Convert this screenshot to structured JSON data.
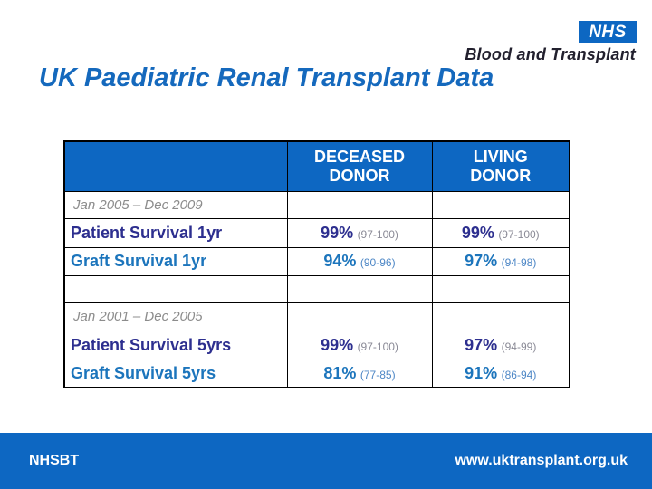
{
  "logo": {
    "nhs": "NHS",
    "org": "Blood and Transplant"
  },
  "title": "UK Paediatric Renal Transplant Data",
  "table": {
    "col_headers": [
      {
        "line1": "DECEASED",
        "line2": "DONOR"
      },
      {
        "line1": "LIVING",
        "line2": "DONOR"
      }
    ],
    "rows": [
      {
        "label": "Jan 2005 – Dec 2009"
      },
      {
        "label": "Patient Survival 1yr",
        "deceased": {
          "pct": "99%",
          "ci": "(97-100)"
        },
        "living": {
          "pct": "99%",
          "ci": "(97-100)"
        }
      },
      {
        "label": "Graft Survival 1yr",
        "deceased": {
          "pct": "94%",
          "ci": "(90-96)"
        },
        "living": {
          "pct": "97%",
          "ci": "(94-98)"
        }
      },
      {
        "label": ""
      },
      {
        "label": "Jan 2001 – Dec 2005"
      },
      {
        "label": "Patient Survival 5yrs",
        "deceased": {
          "pct": "99%",
          "ci": "(97-100)"
        },
        "living": {
          "pct": "97%",
          "ci": "(94-99)"
        }
      },
      {
        "label": "Graft Survival 5yrs",
        "deceased": {
          "pct": "81%",
          "ci": "(77-85)"
        },
        "living": {
          "pct": "91%",
          "ci": "(86-94)"
        }
      }
    ]
  },
  "footer": {
    "left": "NHSBT",
    "right": "www.uktransplant.org.uk"
  },
  "colors": {
    "nhs_blue": "#0d67c2",
    "title_blue": "#1569bd",
    "navy_text": "#2d2f8f",
    "bright_blue_text": "#1c75bc",
    "period_gray": "#8c8c8c",
    "ci_gray": "#8a8a96",
    "ci_blue": "#4d87c6",
    "org_text": "#22202e"
  }
}
